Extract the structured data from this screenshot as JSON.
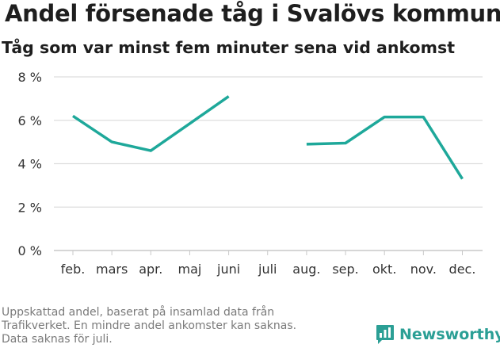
{
  "title": "Andel försenade tåg i Svalövs kommun",
  "subtitle": "Tåg som var minst fem minuter sena vid ankomst",
  "footnote": [
    "Uppskattad andel, baserat på insamlad data från",
    "Trafikverket. En mindre andel ankomster kan saknas.",
    "Data saknas för juli."
  ],
  "logo_text": "Newsworthy",
  "colors": {
    "line": "#1ea89a",
    "grid": "#dddddd",
    "brand": "#2b9f95"
  },
  "chart_data": {
    "type": "line",
    "title": "Andel försenade tåg i Svalövs kommun",
    "subtitle": "Tåg som var minst fem minuter sena vid ankomst",
    "categories": [
      "feb.",
      "mars",
      "apr.",
      "maj",
      "juni",
      "juli",
      "aug.",
      "sep.",
      "okt.",
      "nov.",
      "dec."
    ],
    "series": [
      {
        "values": [
          6.2,
          5.0,
          4.6,
          5.85,
          7.1,
          null,
          4.9,
          4.95,
          6.15,
          6.15,
          3.3
        ]
      }
    ],
    "ylim": [
      0,
      8
    ],
    "yticks": [
      0,
      2,
      4,
      6,
      8
    ],
    "ytick_labels": [
      "0 %",
      "2 %",
      "4 %",
      "6 %",
      "8 %"
    ],
    "grid": true,
    "legend": "none"
  }
}
